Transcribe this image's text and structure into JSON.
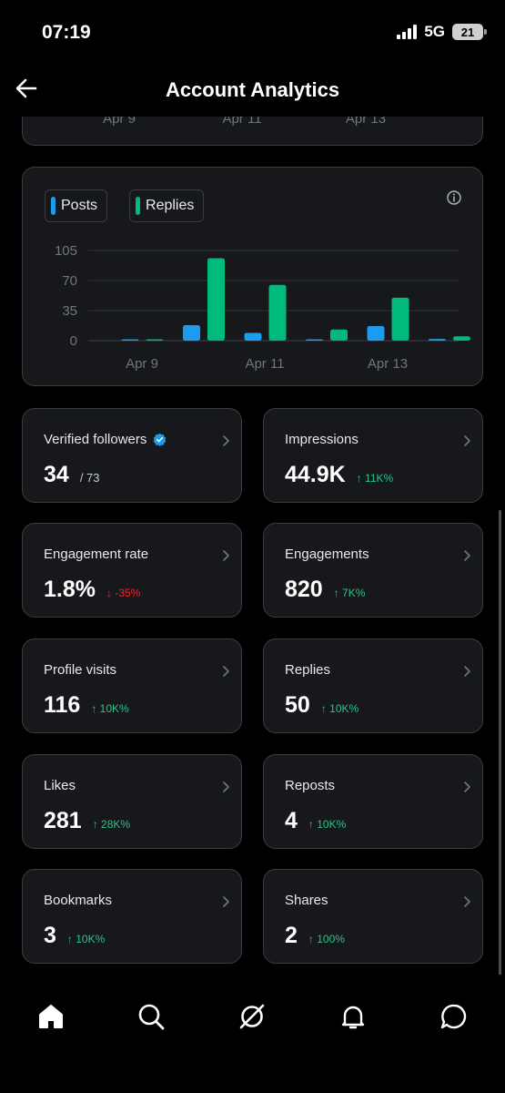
{
  "status": {
    "time": "07:19",
    "network": "5G",
    "battery": "21"
  },
  "header": {
    "title": "Account Analytics"
  },
  "prev_chart": {
    "ticks": [
      "Apr 9",
      "Apr 11",
      "Apr 13"
    ]
  },
  "chart_data": {
    "type": "bar",
    "categories": [
      "Apr 9",
      "Apr 10",
      "Apr 11",
      "Apr 12",
      "Apr 13",
      "Apr 14"
    ],
    "x_tick_labels": [
      "Apr 9",
      "Apr 11",
      "Apr 13"
    ],
    "series": [
      {
        "name": "Posts",
        "color": "#1d9bf0",
        "values": [
          0,
          18,
          9,
          0,
          17,
          2
        ]
      },
      {
        "name": "Replies",
        "color": "#00ba7c",
        "values": [
          1,
          96,
          65,
          13,
          50,
          5
        ]
      }
    ],
    "y_ticks": [
      0,
      35,
      70,
      105
    ],
    "ylim": [
      0,
      105
    ],
    "grid": true,
    "legend_position": "top-left"
  },
  "metrics": [
    {
      "label": "Verified followers",
      "value": "34",
      "sub": "/ 73",
      "delta": "",
      "direction": "",
      "verified": true
    },
    {
      "label": "Impressions",
      "value": "44.9K",
      "sub": "",
      "delta": "↑ 11K%",
      "direction": "up"
    },
    {
      "label": "Engagement rate",
      "value": "1.8%",
      "sub": "",
      "delta": "↓ -35%",
      "direction": "down"
    },
    {
      "label": "Engagements",
      "value": "820",
      "sub": "",
      "delta": "↑ 7K%",
      "direction": "up"
    },
    {
      "label": "Profile visits",
      "value": "116",
      "sub": "",
      "delta": "↑ 10K%",
      "direction": "up"
    },
    {
      "label": "Replies",
      "value": "50",
      "sub": "",
      "delta": "↑ 10K%",
      "direction": "up"
    },
    {
      "label": "Likes",
      "value": "281",
      "sub": "",
      "delta": "↑ 28K%",
      "direction": "up"
    },
    {
      "label": "Reposts",
      "value": "4",
      "sub": "",
      "delta": "↑ 10K%",
      "direction": "up"
    },
    {
      "label": "Bookmarks",
      "value": "3",
      "sub": "",
      "delta": "↑ 10K%",
      "direction": "up"
    },
    {
      "label": "Shares",
      "value": "2",
      "sub": "",
      "delta": "↑ 100%",
      "direction": "up"
    }
  ],
  "bottom_nav": [
    "home-icon",
    "search-icon",
    "grok-icon",
    "notifications-icon",
    "messages-icon"
  ]
}
